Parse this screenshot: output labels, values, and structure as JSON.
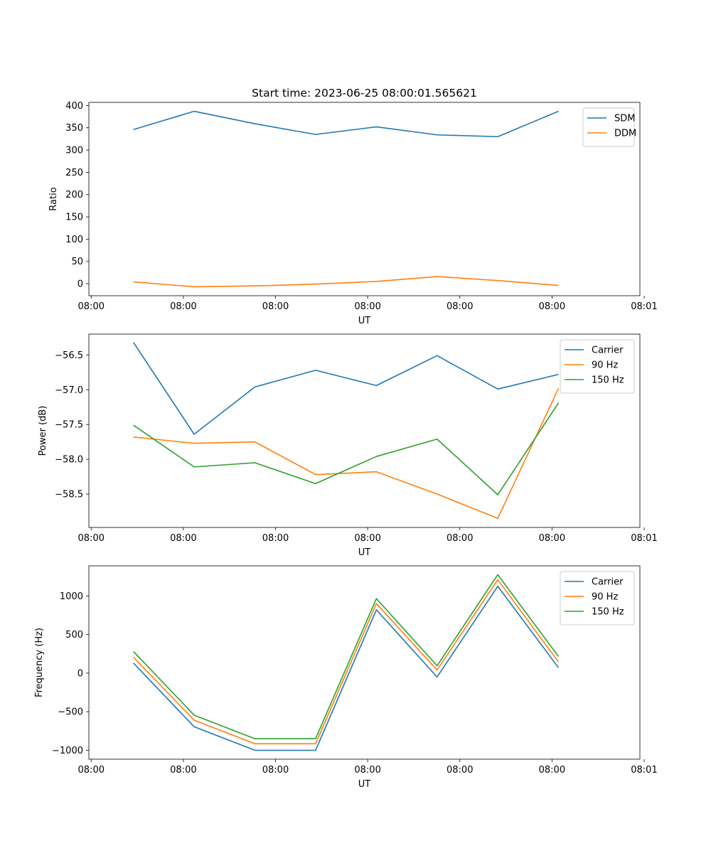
{
  "figure_title": "Start time: 2023-06-25 08:00:01.565621",
  "chart_data": [
    {
      "type": "line",
      "title": "Start time: 2023-06-25 08:00:01.565621",
      "xlabel": "UT",
      "ylabel": "Ratio",
      "x_unit": "seconds after 2023-06-25 08:00:00",
      "xlim": [
        0.75,
        60.3
      ],
      "xticks": [
        {
          "value": 1.0,
          "label": "08:00"
        },
        {
          "value": 10.96,
          "label": "08:00"
        },
        {
          "value": 20.92,
          "label": "08:00"
        },
        {
          "value": 30.88,
          "label": "08:00"
        },
        {
          "value": 40.84,
          "label": "08:00"
        },
        {
          "value": 50.8,
          "label": "08:00"
        },
        {
          "value": 60.76,
          "label": "08:01"
        }
      ],
      "ylim": [
        -27,
        407
      ],
      "yticks": [
        0,
        50,
        100,
        150,
        200,
        250,
        300,
        350,
        400
      ],
      "x": [
        5.57,
        12.13,
        18.69,
        25.25,
        31.82,
        38.38,
        44.94,
        51.5
      ],
      "series": [
        {
          "name": "SDM",
          "color": "#1f77b4",
          "values": [
            346,
            387,
            359,
            335,
            352,
            334,
            330,
            387
          ]
        },
        {
          "name": "DDM",
          "color": "#ff7f0e",
          "values": [
            4,
            -7,
            -5,
            -1,
            5,
            16,
            7,
            -4
          ]
        }
      ],
      "legend": "top-right",
      "grid": false
    },
    {
      "type": "line",
      "xlabel": "UT",
      "ylabel": "Power (dB)",
      "x_unit": "seconds after 2023-06-25 08:00:00",
      "xlim": [
        0.75,
        60.3
      ],
      "xticks": [
        {
          "value": 1.0,
          "label": "08:00"
        },
        {
          "value": 10.96,
          "label": "08:00"
        },
        {
          "value": 20.92,
          "label": "08:00"
        },
        {
          "value": 30.88,
          "label": "08:00"
        },
        {
          "value": 40.84,
          "label": "08:00"
        },
        {
          "value": 50.8,
          "label": "08:00"
        },
        {
          "value": 60.76,
          "label": "08:01"
        }
      ],
      "ylim": [
        -58.98,
        -56.2
      ],
      "yticks": [
        {
          "value": -56.5,
          "label": "−56.5"
        },
        {
          "value": -57.0,
          "label": "−57.0"
        },
        {
          "value": -57.5,
          "label": "−57.5"
        },
        {
          "value": -58.0,
          "label": "−58.0"
        },
        {
          "value": -58.5,
          "label": "−58.5"
        }
      ],
      "x": [
        5.57,
        12.13,
        18.69,
        25.25,
        31.82,
        38.38,
        44.94,
        51.5
      ],
      "series": [
        {
          "name": "Carrier",
          "color": "#1f77b4",
          "values": [
            -56.32,
            -57.64,
            -56.96,
            -56.72,
            -56.94,
            -56.51,
            -56.99,
            -56.78
          ]
        },
        {
          "name": "90 Hz",
          "color": "#ff7f0e",
          "values": [
            -57.68,
            -57.77,
            -57.75,
            -58.22,
            -58.18,
            -58.5,
            -58.85,
            -56.98
          ]
        },
        {
          "name": "150 Hz",
          "color": "#2ca02c",
          "values": [
            -57.51,
            -58.11,
            -58.05,
            -58.35,
            -57.96,
            -57.71,
            -58.51,
            -57.19
          ]
        }
      ],
      "legend": "top-right",
      "grid": false
    },
    {
      "type": "line",
      "xlabel": "UT",
      "ylabel": "Frequency (Hz)",
      "x_unit": "seconds after 2023-06-25 08:00:00",
      "xlim": [
        0.75,
        60.3
      ],
      "xticks": [
        {
          "value": 1.0,
          "label": "08:00"
        },
        {
          "value": 10.96,
          "label": "08:00"
        },
        {
          "value": 20.92,
          "label": "08:00"
        },
        {
          "value": 30.88,
          "label": "08:00"
        },
        {
          "value": 40.84,
          "label": "08:00"
        },
        {
          "value": 50.8,
          "label": "08:00"
        },
        {
          "value": 60.76,
          "label": "08:01"
        }
      ],
      "ylim": [
        -1115,
        1390
      ],
      "yticks": [
        {
          "value": 1000,
          "label": "1000"
        },
        {
          "value": 500,
          "label": "500"
        },
        {
          "value": 0,
          "label": "0"
        },
        {
          "value": -500,
          "label": "−500"
        },
        {
          "value": -1000,
          "label": "−1000"
        }
      ],
      "x": [
        5.57,
        12.13,
        18.69,
        25.25,
        31.82,
        38.38,
        44.94,
        51.5
      ],
      "series": [
        {
          "name": "Carrier",
          "color": "#1f77b4",
          "values": [
            130,
            -695,
            -1000,
            -1000,
            820,
            -50,
            1125,
            70
          ]
        },
        {
          "name": "90 Hz",
          "color": "#ff7f0e",
          "values": [
            205,
            -610,
            -915,
            -915,
            900,
            40,
            1210,
            145
          ]
        },
        {
          "name": "150 Hz",
          "color": "#2ca02c",
          "values": [
            280,
            -545,
            -850,
            -850,
            965,
            95,
            1275,
            215
          ]
        }
      ],
      "legend": "top-right",
      "grid": false
    }
  ]
}
